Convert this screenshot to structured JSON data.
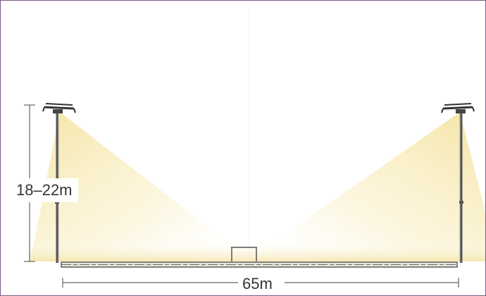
{
  "diagram": {
    "height_label": "18–22m",
    "width_label": "65m",
    "colors": {
      "frame": "#7a5a83",
      "light_beam": "#f7e9a8",
      "pole": "#555555",
      "ground": "#4a4a4a",
      "dimension_line": "#666666",
      "text": "#333333"
    },
    "icons": [
      "floodlight-icon",
      "goal-icon"
    ]
  }
}
